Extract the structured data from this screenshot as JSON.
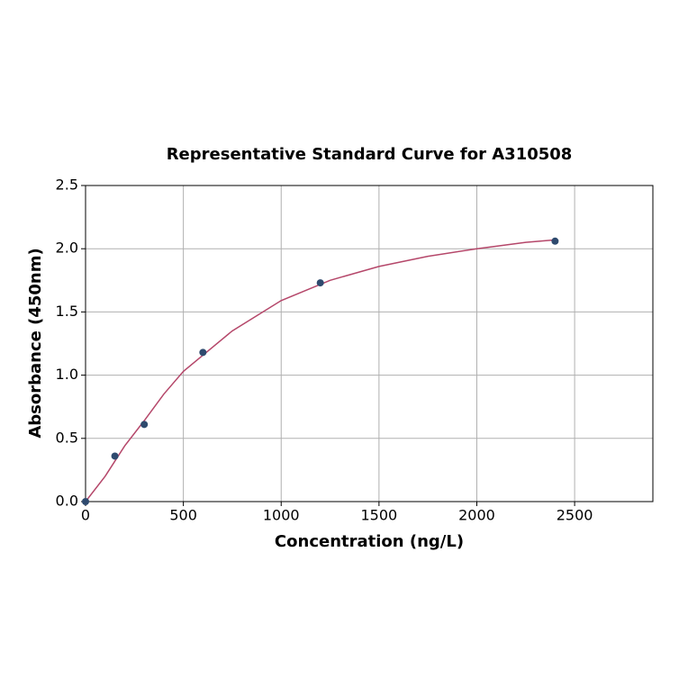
{
  "chart_data": {
    "type": "scatter",
    "title": "Representative Standard Curve for A310508",
    "x_label": "Concentration (ng/L)",
    "y_label": "Absorbance (450nm)",
    "x": [
      0,
      150,
      300,
      600,
      1200,
      2400
    ],
    "values": [
      0,
      0.36,
      0.61,
      1.18,
      1.73,
      2.06
    ],
    "color": "#2e4a6e",
    "curve": {
      "x": [
        0,
        100,
        200,
        300,
        400,
        500,
        750,
        1000,
        1250,
        1500,
        1750,
        2000,
        2250,
        2400
      ],
      "values": [
        0,
        0.2,
        0.44,
        0.64,
        0.85,
        1.03,
        1.35,
        1.59,
        1.75,
        1.86,
        1.94,
        2.0,
        2.05,
        2.07
      ],
      "color": "#b5476a"
    },
    "xlim": [
      0,
      2900
    ],
    "ylim": [
      0,
      2.5
    ],
    "xticks": [
      0,
      500,
      1000,
      1500,
      2000,
      2500
    ],
    "yticks": [
      {
        "value": 0,
        "label": "0.0"
      },
      0.5,
      {
        "value": 1,
        "label": "1.0"
      },
      1.5,
      {
        "value": 2,
        "label": "2.0"
      },
      2.5
    ],
    "grid": true
  }
}
